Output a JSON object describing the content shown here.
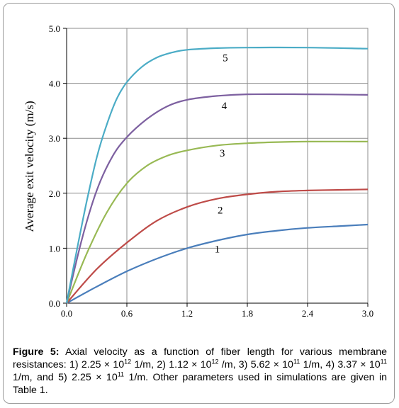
{
  "chart_data": {
    "type": "line",
    "title": "",
    "xlabel": "",
    "ylabel": "Average exit velocity (m/s)",
    "xlim": [
      0,
      3
    ],
    "ylim": [
      0,
      5
    ],
    "x_ticks": [
      "0.0",
      "0.6",
      "1.2",
      "1.8",
      "2.4",
      "3.0"
    ],
    "y_ticks": [
      "0.0",
      "1.0",
      "2.0",
      "3.0",
      "4.0",
      "5.0"
    ],
    "grid": true,
    "legend": "none",
    "series": [
      {
        "name": "1",
        "color": "#4a7ebb",
        "x": [
          0,
          0.3,
          0.6,
          0.9,
          1.2,
          1.5,
          1.8,
          2.1,
          2.4,
          2.7,
          3.0
        ],
        "y": [
          0,
          0.3,
          0.58,
          0.81,
          1.0,
          1.14,
          1.25,
          1.32,
          1.37,
          1.4,
          1.43
        ]
      },
      {
        "name": "2",
        "color": "#be4b48",
        "x": [
          0,
          0.3,
          0.6,
          0.9,
          1.2,
          1.5,
          1.8,
          2.1,
          2.4,
          2.7,
          3.0
        ],
        "y": [
          0,
          0.62,
          1.1,
          1.5,
          1.75,
          1.9,
          1.98,
          2.03,
          2.05,
          2.06,
          2.07
        ]
      },
      {
        "name": "3",
        "color": "#98b954",
        "x": [
          0,
          0.2,
          0.4,
          0.6,
          0.8,
          1.0,
          1.2,
          1.5,
          1.8,
          2.1,
          2.4,
          3.0
        ],
        "y": [
          0,
          0.9,
          1.65,
          2.18,
          2.5,
          2.68,
          2.78,
          2.87,
          2.91,
          2.93,
          2.94,
          2.94
        ]
      },
      {
        "name": "4",
        "color": "#7d60a0",
        "x": [
          0,
          0.15,
          0.3,
          0.45,
          0.6,
          0.8,
          1.0,
          1.2,
          1.5,
          1.8,
          2.4,
          3.0
        ],
        "y": [
          0,
          1.15,
          2.05,
          2.65,
          3.02,
          3.35,
          3.58,
          3.7,
          3.77,
          3.8,
          3.8,
          3.79
        ]
      },
      {
        "name": "5",
        "color": "#4bacc6",
        "x": [
          0,
          0.1,
          0.2,
          0.3,
          0.4,
          0.5,
          0.6,
          0.75,
          0.9,
          1.05,
          1.2,
          1.5,
          1.8,
          2.4,
          3.0
        ],
        "y": [
          0,
          0.95,
          1.85,
          2.65,
          3.25,
          3.72,
          4.02,
          4.3,
          4.47,
          4.56,
          4.61,
          4.64,
          4.65,
          4.65,
          4.63
        ]
      }
    ],
    "annotations": [
      {
        "text": "1",
        "x": 1.5,
        "y": 0.92
      },
      {
        "text": "2",
        "x": 1.53,
        "y": 1.63
      },
      {
        "text": "3",
        "x": 1.55,
        "y": 2.67
      },
      {
        "text": "4",
        "x": 1.57,
        "y": 3.53
      },
      {
        "text": "5",
        "x": 1.58,
        "y": 4.4
      }
    ]
  },
  "caption": {
    "label": "Figure 5:",
    "text": [
      " Axial velocity as a function of fiber length for various membrane resistances: 1) 2.25 × 10",
      "12",
      " 1/m, 2) 1.12 × 10",
      "12",
      " /m, 3) 5.62 × 10",
      "11",
      " 1/m, 4) 3.37 × 10",
      "11",
      " 1/m, and 5) 2.25 × 10",
      "11",
      " 1/m.  Other parameters used in simulations are given in Table 1."
    ]
  }
}
